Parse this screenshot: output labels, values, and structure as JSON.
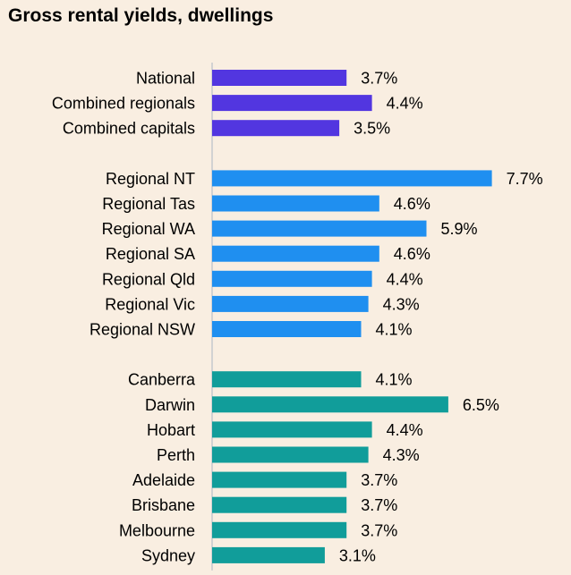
{
  "chart_data": {
    "type": "bar",
    "orientation": "horizontal",
    "title": "Gross rental yields, dwellings",
    "xlabel": "",
    "ylabel": "",
    "value_suffix": "%",
    "grid": false,
    "legend": "none",
    "groups": [
      {
        "color": "#5236e0",
        "items": [
          {
            "label": "National",
            "value": 3.7
          },
          {
            "label": "Combined regionals",
            "value": 4.4
          },
          {
            "label": "Combined capitals",
            "value": 3.5
          }
        ]
      },
      {
        "color": "#1f8ff0",
        "items": [
          {
            "label": "Regional NT",
            "value": 7.7
          },
          {
            "label": "Regional Tas",
            "value": 4.6
          },
          {
            "label": "Regional WA",
            "value": 5.9
          },
          {
            "label": "Regional SA",
            "value": 4.6
          },
          {
            "label": "Regional Qld",
            "value": 4.4
          },
          {
            "label": "Regional Vic",
            "value": 4.3
          },
          {
            "label": "Regional NSW",
            "value": 4.1
          }
        ]
      },
      {
        "color": "#119d9a",
        "items": [
          {
            "label": "Canberra",
            "value": 4.1
          },
          {
            "label": "Darwin",
            "value": 6.5
          },
          {
            "label": "Hobart",
            "value": 4.4
          },
          {
            "label": "Perth",
            "value": 4.3
          },
          {
            "label": "Adelaide",
            "value": 3.7
          },
          {
            "label": "Brisbane",
            "value": 3.7
          },
          {
            "label": "Melbourne",
            "value": 3.7
          },
          {
            "label": "Sydney",
            "value": 3.1
          }
        ]
      }
    ],
    "colors": {
      "background": "#f9eee1",
      "axis": "#d2d2d2",
      "text": "#000000"
    }
  }
}
